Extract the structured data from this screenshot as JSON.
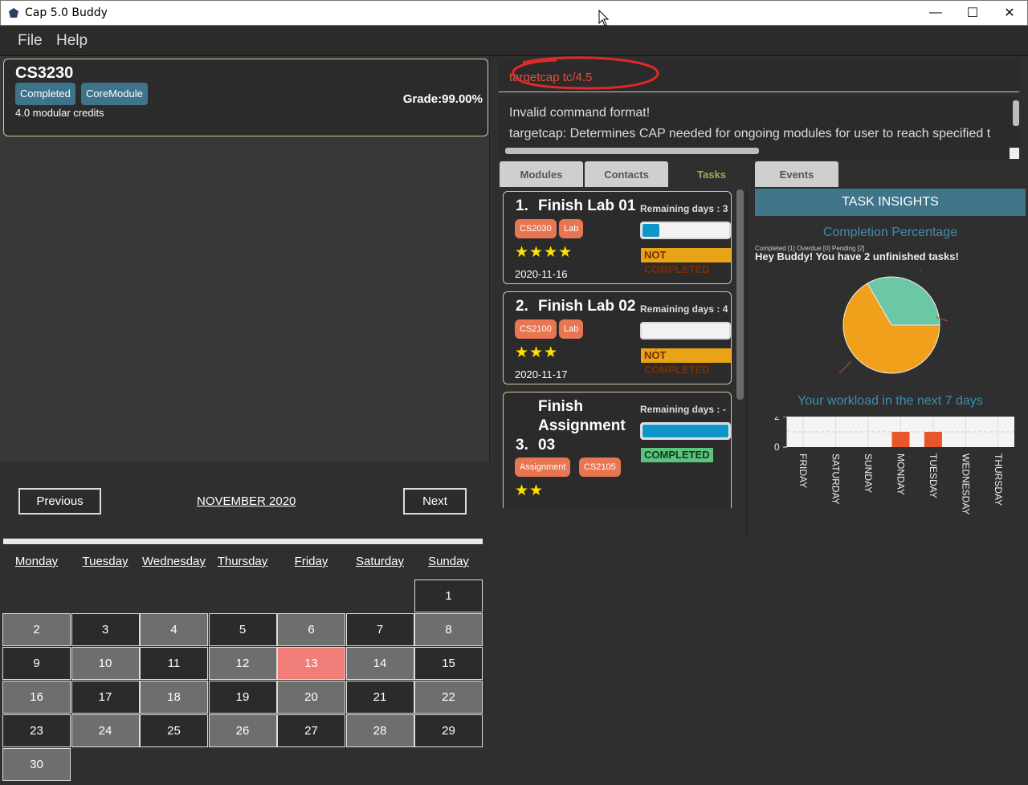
{
  "window": {
    "title": "Cap 5.0 Buddy",
    "minimize": "—",
    "maximize": "☐",
    "close": "✕"
  },
  "menu": {
    "file": "File",
    "help": "Help"
  },
  "module": {
    "code": "CS3230",
    "tags": [
      "Completed",
      "CoreModule"
    ],
    "credits": "4.0 modular credits",
    "grade": "Grade:99.00%"
  },
  "calendar": {
    "prev": "Previous",
    "next": "Next",
    "month": "NOVEMBER 2020",
    "weekdays": [
      "Monday",
      "Tuesday",
      "Wednesday",
      "Thursday",
      "Friday",
      "Saturday",
      "Sunday"
    ],
    "today": 13
  },
  "command": {
    "text": "targetcap tc/4.5"
  },
  "result": {
    "line1": "Invalid command format!",
    "line2": "targetcap: Determines CAP needed for ongoing modules for user to reach specified t"
  },
  "tabs": [
    "Modules",
    "Contacts",
    "Tasks",
    "Events"
  ],
  "tasks": [
    {
      "num": "1.",
      "name": "Finish Lab 01",
      "remaining": "Remaining days : 3",
      "progress": 0.2,
      "status": "NOT COMPLETED",
      "tags": [
        "CS2030",
        "Lab"
      ],
      "stars": "★★★★",
      "date": "2020-11-16"
    },
    {
      "num": "2.",
      "name": "Finish Lab 02",
      "remaining": "Remaining days : 4",
      "progress": 0.0,
      "status": "NOT COMPLETED",
      "tags": [
        "CS2100",
        "Lab"
      ],
      "stars": "★★★",
      "date": "2020-11-17"
    },
    {
      "num": "3.",
      "name": "Finish Assignment 03",
      "remaining": "Remaining days : -",
      "progress": 1.0,
      "status": "COMPLETED",
      "tags": [
        "Assignment",
        "CS2105"
      ],
      "stars": "★★",
      "date": ""
    }
  ],
  "insights": {
    "header": "TASK INSIGHTS",
    "completion_title": "Completion Percentage",
    "message": "Hey Buddy! You have 2 unfinished tasks!",
    "tiny_legend": "Completed [1]  Overdue [0]  Pending [2]",
    "workload_title": "Your workload in the next 7 days"
  },
  "chart_data": [
    {
      "type": "pie",
      "title": "Completion Percentage",
      "labels": [
        "Completed",
        "Pending"
      ],
      "values": [
        1,
        2
      ],
      "colors": [
        "#6cc7a4",
        "#f0a01a"
      ]
    },
    {
      "type": "bar",
      "title": "Your workload in the next 7 days",
      "categories": [
        "FRIDAY",
        "SATURDAY",
        "SUNDAY",
        "MONDAY",
        "TUESDAY",
        "WEDNESDAY",
        "THURSDAY"
      ],
      "values": [
        0,
        0,
        0,
        1,
        1,
        0,
        0
      ],
      "ylim": [
        0,
        2
      ],
      "yticks": [
        "0",
        "2"
      ],
      "color": "#e8562a"
    }
  ]
}
